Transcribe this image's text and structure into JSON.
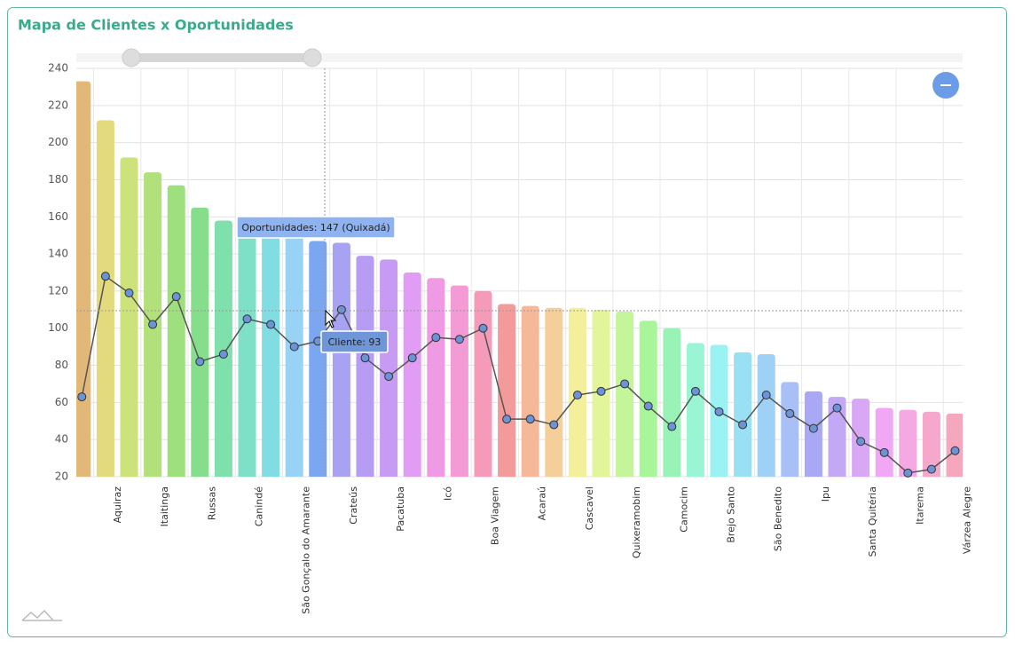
{
  "chart_data": {
    "type": "bar-line",
    "title": "Mapa de Clientes x Oportunidades",
    "categories": [
      null,
      "Aquiraz",
      null,
      "Itaitinga",
      null,
      "Russas",
      null,
      "Canindé",
      null,
      "São Gonçalo do Amarante",
      null,
      "Crateús",
      null,
      "Pacatuba",
      null,
      "Icó",
      null,
      "Boa Viagem",
      null,
      "Acaraú",
      null,
      "Cascavel",
      null,
      "Quixeramobim",
      null,
      "Camocim",
      null,
      "Brejo Santo",
      null,
      "São Benedito",
      null,
      "Ipu",
      null,
      "Santa Quitéria",
      null,
      "Itarema",
      null,
      "Várzea Alegre"
    ],
    "series": [
      {
        "kind": "bar",
        "values": [
          233,
          212,
          192,
          184,
          177,
          165,
          158,
          155,
          152,
          150,
          147,
          146,
          139,
          137,
          130,
          127,
          123,
          120,
          113,
          112,
          111,
          111,
          110,
          109,
          104,
          100,
          92,
          91,
          87,
          86,
          71,
          66,
          63,
          62,
          57,
          56,
          55,
          54
        ],
        "colors": [
          "#e2b878",
          "#e2da7c",
          "#cde27a",
          "#b2e07a",
          "#9edf7e",
          "#86de8c",
          "#7fe0ac",
          "#7fe0c8",
          "#82dde2",
          "#98d2f5",
          "#7ba7f0",
          "#a7a2f2",
          "#b69cf3",
          "#c79bf3",
          "#e19cf3",
          "#f09ae6",
          "#f49ad4",
          "#f59ab8",
          "#f39a9a",
          "#f5b99a",
          "#f5cf9a",
          "#f3ef9a",
          "#e2f59a",
          "#c4f59a",
          "#a9f59a",
          "#9af3b6",
          "#9af5d4",
          "#9af2f3",
          "#9ae0f5",
          "#9fd0f5",
          "#a8c0f5",
          "#a8a8f5",
          "#c2a8f5",
          "#d8a8f5",
          "#f0a8f5",
          "#f5a8e2",
          "#f5a8cc",
          "#f5a8bd"
        ]
      },
      {
        "kind": "line",
        "color": "#555555",
        "marker_color": "#6b93d6",
        "values": [
          63,
          128,
          119,
          102,
          117,
          82,
          86,
          105,
          102,
          90,
          93,
          110,
          84,
          74,
          84,
          95,
          94,
          100,
          51,
          51,
          48,
          64,
          66,
          70,
          58,
          47,
          66,
          55,
          48,
          64,
          54,
          46,
          57,
          39,
          33,
          22,
          24,
          34
        ]
      }
    ],
    "ylim": [
      20,
      240
    ],
    "yticks": [
      20,
      40,
      60,
      80,
      100,
      120,
      140,
      160,
      180,
      200,
      220,
      240
    ],
    "grid": true,
    "tooltips": [
      {
        "text": "Oportunidades: 147 (Quixadá)"
      },
      {
        "text": "Cliente: 93"
      }
    ]
  }
}
